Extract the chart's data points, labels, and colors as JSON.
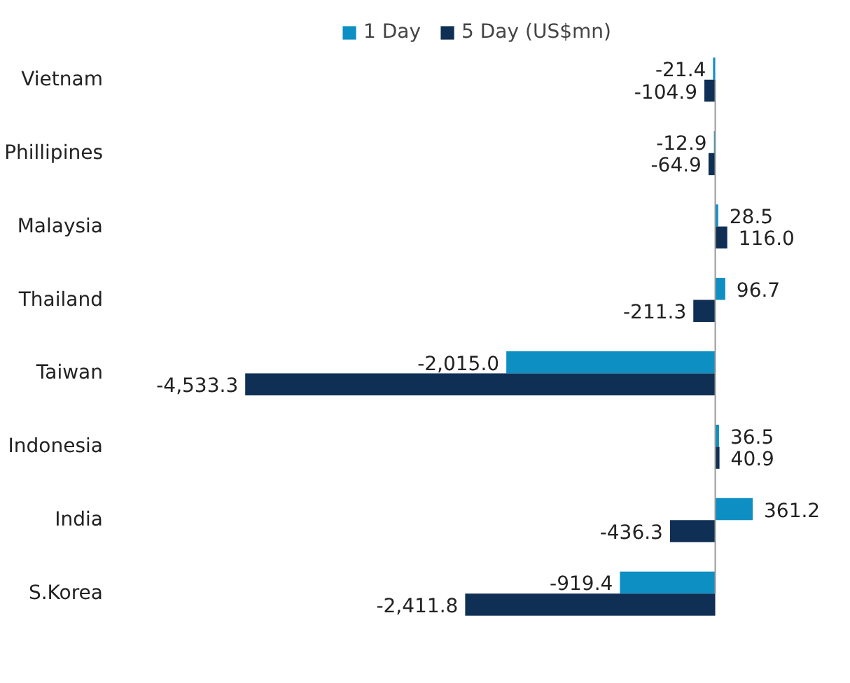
{
  "chart_data": {
    "type": "bar",
    "orientation": "horizontal",
    "categories": [
      "Vietnam",
      "Phillipines",
      "Malaysia",
      "Thailand",
      "Taiwan",
      "Indonesia",
      "India",
      "S.Korea"
    ],
    "series": [
      {
        "name": "1 Day",
        "color": "#0e8fc4",
        "values": [
          -21.4,
          -12.9,
          28.5,
          96.7,
          -2015.0,
          36.5,
          361.2,
          -919.4
        ],
        "value_labels": [
          "-21.4",
          "-12.9",
          "28.5",
          "96.7",
          "-2,015.0",
          "36.5",
          "361.2",
          "-919.4"
        ]
      },
      {
        "name": "5 Day (US$mn)",
        "color": "#0f2f55",
        "values": [
          -104.9,
          -64.9,
          116.0,
          -211.3,
          -4533.3,
          40.9,
          -436.3,
          -2411.8
        ],
        "value_labels": [
          "-104.9",
          "-64.9",
          "116.0",
          "-211.3",
          "-4,533.3",
          "40.9",
          "-436.3",
          "-2,411.8"
        ]
      }
    ],
    "legend": "top",
    "grid": false
  }
}
